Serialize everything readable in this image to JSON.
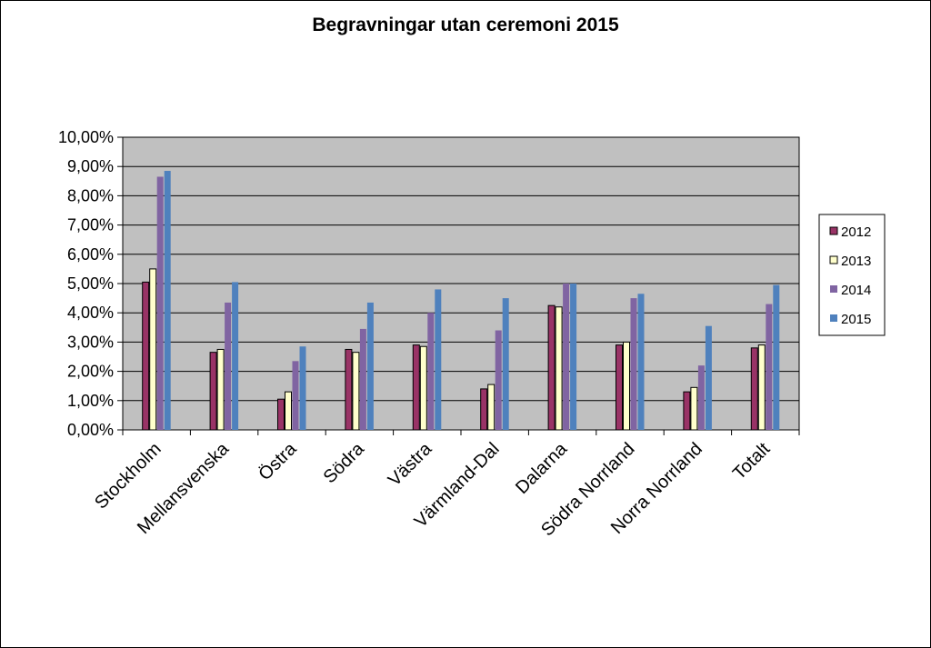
{
  "chart_data": {
    "type": "bar",
    "title": "Begravningar utan ceremoni 2015",
    "xlabel": "",
    "ylabel": "",
    "ylim": [
      0,
      10
    ],
    "y_tick_labels": [
      "0,00%",
      "1,00%",
      "2,00%",
      "3,00%",
      "4,00%",
      "5,00%",
      "6,00%",
      "7,00%",
      "8,00%",
      "9,00%",
      "10,00%"
    ],
    "categories": [
      "Stockholm",
      "Mellansvenska",
      "Östra",
      "Södra",
      "Västra",
      "Värmland-Dal",
      "Dalarna",
      "Södra Norrland",
      "Norra Norrland",
      "Totalt"
    ],
    "series": [
      {
        "name": "2012",
        "color": "#993366",
        "values": [
          5.05,
          2.65,
          1.05,
          2.75,
          2.9,
          1.4,
          4.25,
          2.9,
          1.3,
          2.8
        ]
      },
      {
        "name": "2013",
        "color": "#FFFFCC",
        "values": [
          5.5,
          2.75,
          1.3,
          2.65,
          2.85,
          1.55,
          4.2,
          3.0,
          1.45,
          2.9
        ]
      },
      {
        "name": "2014",
        "color": "#8064A2",
        "values": [
          8.65,
          4.35,
          2.35,
          3.45,
          4.0,
          3.4,
          5.0,
          4.5,
          2.2,
          4.3
        ]
      },
      {
        "name": "2015",
        "color": "#4F81BD",
        "values": [
          8.85,
          5.05,
          2.85,
          4.35,
          4.8,
          4.5,
          5.0,
          4.65,
          3.55,
          4.95
        ]
      }
    ],
    "grid": true,
    "plot_background": "#C0C0C0",
    "legend_position": "right"
  }
}
